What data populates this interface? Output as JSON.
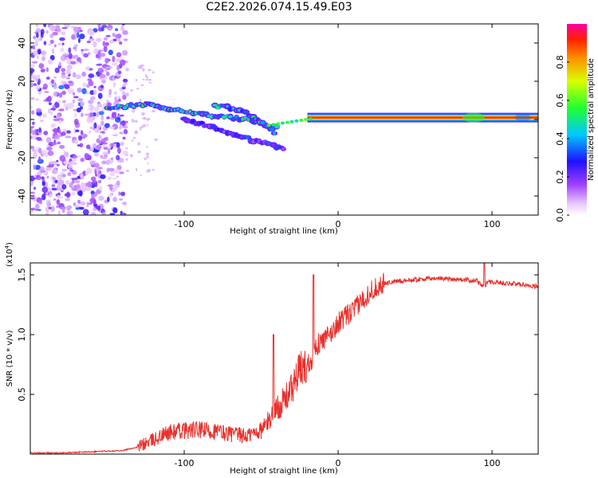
{
  "page_title": "C2E2.2026.074.15.49.E03",
  "chart_data": [
    {
      "type": "heatmap",
      "name": "spectrogram",
      "xlabel": "Height of straight line (km)",
      "ylabel": "Frequency (Hz)",
      "xlim": [
        -200,
        130
      ],
      "ylim": [
        -50,
        50
      ],
      "xticks": [
        -100,
        0,
        100
      ],
      "xtick_labels": [
        "-100",
        "0",
        "100"
      ],
      "yticks": [
        -40,
        -20,
        0,
        20,
        40
      ],
      "ytick_labels": [
        "-40",
        "-20",
        "0",
        "20",
        "40"
      ],
      "colorbar": {
        "label": "Normalized spectral amplitude",
        "range": [
          0,
          1
        ],
        "ticks": [
          0.0,
          0.2,
          0.4,
          0.6,
          0.8
        ],
        "tick_labels": [
          "0.0",
          "0.2",
          "0.4",
          "0.6",
          "0.8"
        ]
      },
      "features": [
        {
          "name": "broadband noise",
          "x_range": [
            -200,
            -138
          ],
          "freq_range": [
            -50,
            50
          ],
          "amplitude": 0.15
        },
        {
          "name": "upper descending branch",
          "points": [
            [
              -150,
              6
            ],
            [
              -125,
              8
            ],
            [
              -100,
              4
            ],
            [
              -80,
              2
            ],
            [
              -60,
              0
            ],
            [
              -45,
              -3
            ],
            [
              -38,
              -4
            ]
          ],
          "amplitude": 0.45
        },
        {
          "name": "second descending branch",
          "points": [
            [
              -80,
              7
            ],
            [
              -68,
              6
            ],
            [
              -58,
              3
            ],
            [
              -52,
              0
            ],
            [
              -46,
              -4
            ],
            [
              -40,
              -8
            ]
          ],
          "amplitude": 0.4
        },
        {
          "name": "lower descending branch",
          "points": [
            [
              -100,
              0
            ],
            [
              -85,
              -3
            ],
            [
              -70,
              -7
            ],
            [
              -55,
              -11
            ],
            [
              -40,
              -14
            ],
            [
              -34,
              -16
            ]
          ],
          "amplitude": 0.25
        },
        {
          "name": "steady tone",
          "x_range": [
            -20,
            130
          ],
          "freq": 1,
          "amplitude": 0.85
        }
      ]
    },
    {
      "type": "line",
      "name": "snr",
      "xlabel": "Height of straight line (km)",
      "ylabel": "SNR (10 * v/v)",
      "y_multiplier_label": "(x10",
      "y_multiplier_exponent": "4",
      "y_multiplier_close": ")",
      "xlim": [
        -200,
        130
      ],
      "ylim": [
        0,
        1.6
      ],
      "xticks": [
        -100,
        0,
        100
      ],
      "xtick_labels": [
        "-100",
        "0",
        "100"
      ],
      "yticks": [
        0.5,
        1.0,
        1.5
      ],
      "ytick_labels": [
        "0.5",
        "1.0",
        "1.5"
      ],
      "color": "#e8302c",
      "series": [
        {
          "name": "SNR",
          "x": [
            -200,
            -180,
            -160,
            -140,
            -130,
            -120,
            -110,
            -100,
            -90,
            -80,
            -70,
            -60,
            -50,
            -45,
            -40,
            -35,
            -30,
            -25,
            -20,
            -17,
            -15,
            -10,
            -5,
            0,
            5,
            10,
            15,
            20,
            25,
            30,
            40,
            50,
            60,
            70,
            80,
            90,
            93,
            95,
            97,
            100,
            110,
            120,
            130
          ],
          "y": [
            0.01,
            0.01,
            0.02,
            0.03,
            0.06,
            0.12,
            0.18,
            0.2,
            0.2,
            0.19,
            0.17,
            0.15,
            0.2,
            0.28,
            0.38,
            0.45,
            0.55,
            0.7,
            0.75,
            0.8,
            0.9,
            0.95,
            1.0,
            1.1,
            1.15,
            1.2,
            1.28,
            1.35,
            1.4,
            1.43,
            1.45,
            1.46,
            1.47,
            1.47,
            1.46,
            1.45,
            1.42,
            1.38,
            1.45,
            1.44,
            1.43,
            1.42,
            1.4
          ]
        }
      ],
      "spikes": [
        [
          -42,
          1.0
        ],
        [
          -16,
          1.5
        ],
        [
          95,
          1.62
        ]
      ]
    }
  ]
}
